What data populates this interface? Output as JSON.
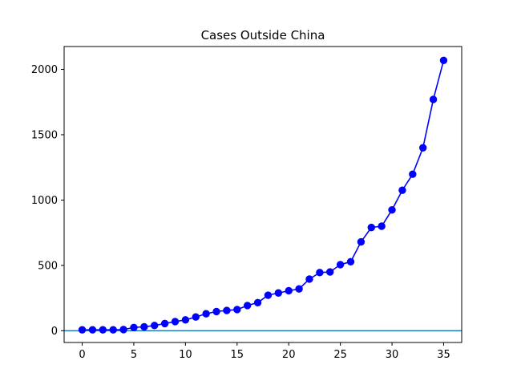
{
  "chart_data": {
    "type": "line",
    "title": "Cases Outside China",
    "xlabel": "",
    "ylabel": "",
    "xlim": [
      -1.75,
      36.75
    ],
    "ylim": [
      -90,
      2175
    ],
    "xticks": [
      0,
      5,
      10,
      15,
      20,
      25,
      30,
      35
    ],
    "yticks": [
      0,
      500,
      1000,
      1500,
      2000
    ],
    "grid": false,
    "reference_line": {
      "y": 0,
      "color": "#1f77b4"
    },
    "series": [
      {
        "color": "#0000ff",
        "marker": "circle",
        "x": [
          0,
          1,
          2,
          3,
          4,
          5,
          6,
          7,
          8,
          9,
          10,
          11,
          12,
          13,
          14,
          15,
          16,
          17,
          18,
          19,
          20,
          21,
          22,
          23,
          24,
          25,
          26,
          27,
          28,
          29,
          30,
          31,
          32,
          33,
          34,
          35
        ],
        "y": [
          7,
          7,
          7,
          7,
          9,
          25,
          30,
          40,
          55,
          70,
          83,
          105,
          130,
          147,
          155,
          162,
          193,
          215,
          272,
          289,
          306,
          320,
          395,
          445,
          450,
          506,
          528,
          680,
          790,
          800,
          925,
          1075,
          1198,
          1400,
          1770,
          2069
        ]
      }
    ]
  }
}
